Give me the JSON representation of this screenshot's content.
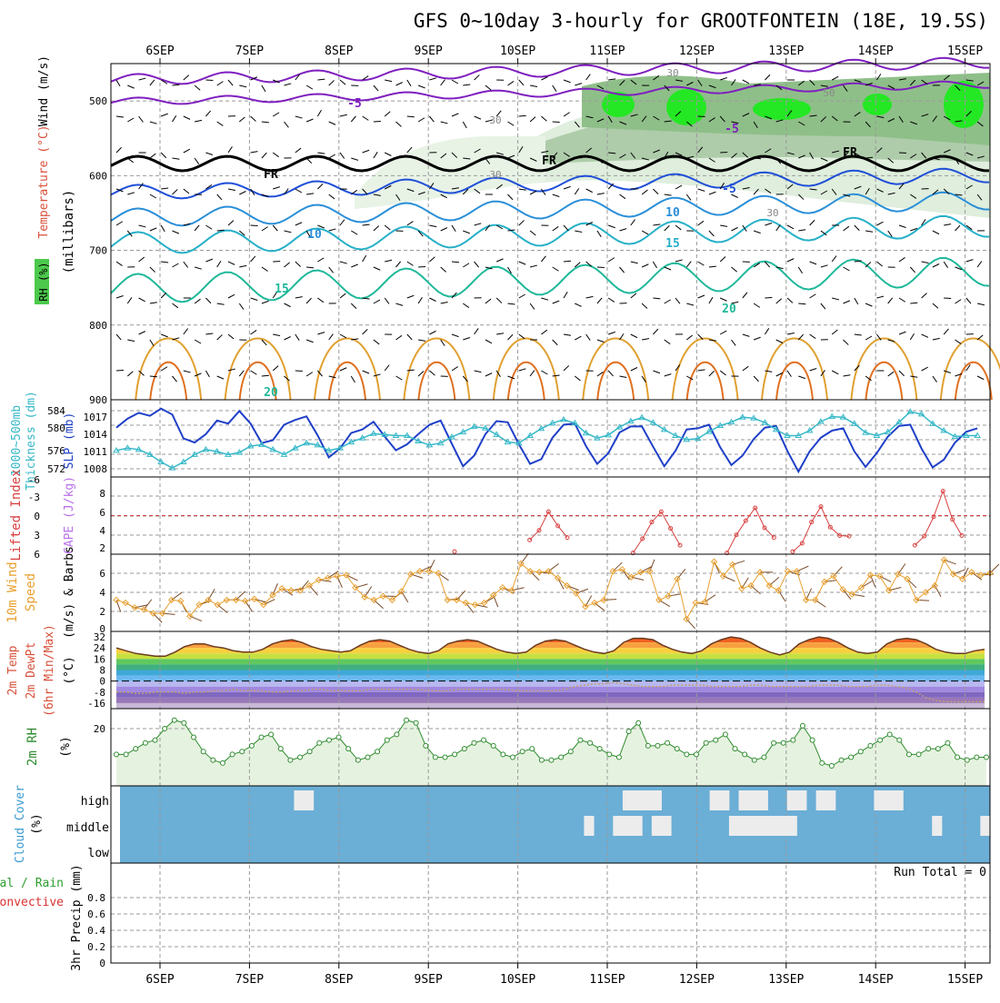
{
  "title": "GFS 0~10day 3-hourly for GROOTFONTEIN (18E, 19.5S)",
  "dates": [
    "6SEP",
    "7SEP",
    "8SEP",
    "9SEP",
    "10SEP",
    "11SEP",
    "12SEP",
    "13SEP",
    "14SEP",
    "15SEP"
  ],
  "colors": {
    "frame": "#000000",
    "grid": "#9a9a9a",
    "slp": "#1f3fc8",
    "thickness": "#36b8c8",
    "cape": "#b870e8",
    "lifted": "#d84040",
    "wind10m": "#e8a030",
    "barb": "#7a4a28",
    "rh2m": "#2e8b2e",
    "rhFill": "#e6f2e0",
    "cloudBg": "#6baed6",
    "cloud": "#ececec",
    "precipTotal": "#2e9e2e",
    "precipConv": "#d83030"
  },
  "panels": {
    "upper": {
      "left_labels": [
        "Wind (m/s)",
        "Temperature (°C)",
        "RH (%)"
      ],
      "ylabel": "(millibars)",
      "ticks": [
        "500",
        "600",
        "700",
        "800",
        "900"
      ],
      "tick_values": [
        500,
        600,
        700,
        800,
        900
      ],
      "ylim": [
        450,
        900
      ],
      "temp_labels": [
        "-5",
        "-5",
        "FR",
        "FR",
        "FR",
        "-5",
        "10",
        "10",
        "15",
        "15",
        "20",
        "20"
      ],
      "rh_labels": [
        "30",
        "30",
        "30",
        "30",
        "50"
      ]
    },
    "slp": {
      "left_labels": [
        "1000~500mb",
        "Thickness (dm)",
        "SLP (mb)"
      ],
      "thickness_ticks": [
        "584",
        "580",
        "576",
        "572"
      ],
      "slp_ticks": [
        "1017",
        "1014",
        "1011",
        "1008"
      ]
    },
    "cape": {
      "left_labels": [
        "Lifted Index",
        "CAPE (J/kg)"
      ],
      "li_ticks": [
        "-6",
        "-3",
        "0",
        "3",
        "6"
      ],
      "cape_ticks": [
        "8",
        "6",
        "4",
        "2"
      ]
    },
    "wind": {
      "left_labels": [
        "10m Wind",
        "Speed",
        "(m/s) & Barbs"
      ],
      "ticks": [
        "6",
        "4",
        "2",
        "0"
      ]
    },
    "temp": {
      "left_labels": [
        "2m Temp",
        "2m DewPt",
        "(6hr Min/Max)",
        "(°C)"
      ],
      "ticks": [
        "32",
        "24",
        "16",
        "8",
        "0",
        "-8",
        "-16"
      ]
    },
    "rh": {
      "left_labels": [
        "2m RH",
        "(%)"
      ],
      "ticks": [
        "20"
      ]
    },
    "cloud": {
      "left_labels": [
        "Cloud Cover",
        "(%)"
      ],
      "ticks": [
        "high",
        "middle",
        "low"
      ]
    },
    "precip": {
      "left_labels": [
        "Total / Rain",
        "Convective",
        "3hr Precip (mm)"
      ],
      "ticks": [
        "0.8",
        "0.6",
        "0.4",
        "0.2",
        "0"
      ],
      "run_total": "Run Total = 0"
    }
  },
  "chart_data": [
    {
      "type": "line",
      "name": "Sea level pressure and 1000-500mb thickness",
      "x_step_hours": 3,
      "series": [
        {
          "name": "SLP (mb)",
          "ylim": [
            1006,
            1019
          ],
          "values": [
            1014.3,
            1015.8,
            1016.8,
            1016.3,
            1017.5,
            1016.5,
            1012.5,
            1011.8,
            1013.2,
            1015.5,
            1015.0,
            1017.1,
            1015.0,
            1011.7,
            1012.2,
            1014.8,
            1015.6,
            1016.2,
            1013.0,
            1009.3,
            1010.8,
            1013.4,
            1014.0,
            1015.3,
            1012.8,
            1010.5,
            1011.5,
            1013.2,
            1014.8,
            1015.5,
            1011.6,
            1007.8,
            1009.6,
            1013.2,
            1015.4,
            1015.2,
            1011.5,
            1008.2,
            1009.0,
            1012.6,
            1014.8,
            1015.0,
            1011.2,
            1008.2,
            1010.0,
            1013.5,
            1014.5,
            1014.5,
            1011.1,
            1007.8,
            1010.4,
            1014.0,
            1014.2,
            1014.8,
            1011.0,
            1008.0,
            1009.6,
            1012.4,
            1014.3,
            1014.6,
            1010.4,
            1006.9,
            1010.3,
            1012.6,
            1013.8,
            1014.2,
            1010.3,
            1007.7,
            1010.0,
            1012.8,
            1014.6,
            1014.8,
            1010.8,
            1007.6,
            1008.9,
            1011.8,
            1013.6,
            1014.2
          ]
        },
        {
          "name": "1000~500mb Thickness (dm)",
          "ylim": [
            570.5,
            586
          ],
          "values": [
            575.8,
            576.3,
            576.0,
            575.0,
            573.5,
            572.3,
            573.5,
            575.0,
            576.0,
            575.6,
            575.0,
            575.4,
            576.7,
            577.0,
            576.0,
            575.0,
            576.3,
            577.3,
            576.9,
            575.8,
            576.3,
            577.5,
            578.3,
            579.2,
            579.0,
            578.8,
            578.8,
            577.7,
            576.9,
            577.3,
            578.5,
            579.5,
            580.6,
            580.3,
            579.0,
            577.5,
            577.3,
            578.8,
            580.2,
            581.3,
            582.0,
            581.3,
            579.3,
            578.3,
            578.9,
            580.5,
            581.7,
            582.4,
            581.4,
            580.0,
            578.8,
            578.0,
            578.2,
            579.6,
            580.8,
            581.5,
            582.5,
            582.3,
            581.4,
            580.0,
            578.8,
            578.8,
            579.8,
            581.6,
            582.6,
            582.5,
            581.2,
            579.4,
            578.8,
            579.5,
            581.5,
            583.6,
            583.1,
            581.2,
            579.8,
            578.6,
            578.8,
            578.8
          ]
        }
      ]
    },
    {
      "type": "line",
      "name": "Lifted Index and CAPE",
      "series": [
        {
          "name": "Lifted Index",
          "ylim": [
            -6,
            6
          ],
          "values": [
            6,
            6,
            6,
            6,
            6,
            6,
            6,
            6,
            6,
            6,
            6,
            6,
            6,
            6,
            6,
            6,
            6,
            6,
            6,
            6,
            6,
            6,
            6,
            6,
            6,
            6,
            6,
            6,
            6,
            6,
            6,
            6,
            6,
            6,
            6,
            6,
            5.6,
            6,
            6,
            6,
            6,
            6,
            6,
            6,
            3.8,
            2.3,
            -0.6,
            1.6,
            3.4,
            6,
            6,
            6,
            6,
            6,
            6,
            5.8,
            3.6,
            1.0,
            -0.6,
            2.0,
            4.6,
            6,
            6,
            6,
            6,
            5.8,
            3.0,
            0.8,
            -1.2,
            1.9,
            3.4,
            6,
            5.6,
            4.3,
            1.0,
            -1.4,
            1.8,
            3.1,
            3.2,
            6,
            6,
            6,
            6,
            6,
            6,
            4.6,
            3.2,
            0.2,
            -3.8,
            0.6,
            3.1,
            6,
            6,
            6
          ]
        },
        {
          "name": "CAPE (J/kg)",
          "ylim": [
            0,
            10
          ],
          "bar_index": 87,
          "bar_value": 9.6
        }
      ]
    },
    {
      "type": "line",
      "name": "10m wind speed",
      "ylim": [
        0,
        7.5
      ],
      "values": [
        3.0,
        2.7,
        2.2,
        2.0,
        1.6,
        1.6,
        3.0,
        2.9,
        1.3,
        2.5,
        3.0,
        2.5,
        3.0,
        3.0,
        2.9,
        3.1,
        2.5,
        3.5,
        4.2,
        4.0,
        4.0,
        4.5,
        5.1,
        5.3,
        5.5,
        5.6,
        4.3,
        3.3,
        3.0,
        3.4,
        3.0,
        3.9,
        5.7,
        6.0,
        6.0,
        5.8,
        3.0,
        3.0,
        2.7,
        2.5,
        2.7,
        3.5,
        4.3,
        4.0,
        6.8,
        6.0,
        5.9,
        6.0,
        5.3,
        4.5,
        3.7,
        2.3,
        2.7,
        3.0,
        6.0,
        6.2,
        5.4,
        5.9,
        6.0,
        3.0,
        3.4,
        5.2,
        1.0,
        2.7,
        2.8,
        7.0,
        5.5,
        6.7,
        4.2,
        4.5,
        5.9,
        4.5,
        4.0,
        6.0,
        6.0,
        3.0,
        3.0,
        4.9,
        5.5,
        4.1,
        3.6,
        4.3,
        5.6,
        5.5,
        4.0,
        5.7,
        5.2,
        3.0,
        3.8,
        4.5,
        7.2,
        5.7,
        5.2,
        5.9,
        5.6,
        5.8
      ]
    },
    {
      "type": "area",
      "name": "2m temperature and dewpoint",
      "ylim": [
        -20,
        36
      ],
      "series": [
        {
          "name": "2m Temp",
          "values": [
            24,
            22,
            20,
            19,
            18,
            18,
            21,
            25,
            27,
            27,
            25,
            24,
            22,
            21,
            21,
            23,
            27,
            29,
            30,
            28,
            25,
            23,
            22,
            21,
            22,
            26,
            29,
            30,
            29,
            26,
            23,
            21,
            20,
            22,
            27,
            29,
            30,
            29,
            26,
            23,
            21,
            20,
            21,
            26,
            29,
            30,
            29,
            26,
            23,
            21,
            20,
            22,
            28,
            31,
            31,
            30,
            26,
            23,
            21,
            20,
            22,
            27,
            30,
            32,
            31,
            28,
            24,
            21,
            19,
            21,
            27,
            30,
            32,
            31,
            28,
            24,
            21,
            20,
            21,
            27,
            30,
            31,
            30,
            27,
            23,
            21,
            20,
            20,
            22,
            23
          ]
        },
        {
          "name": "2m DewPt",
          "values": [
            -8,
            -8,
            -9,
            -9,
            -8,
            -8,
            -8,
            -9,
            -8,
            -8,
            -7,
            -7,
            -6,
            -7,
            -7,
            -7,
            -8,
            -8,
            -7,
            -7,
            -6,
            -6,
            -7,
            -7,
            -7,
            -7,
            -6,
            -6,
            -6,
            -6,
            -6,
            -6,
            -7,
            -7,
            -7,
            -6,
            -6,
            -6,
            -6,
            -6,
            -6,
            -7,
            -7,
            -7,
            -7,
            -7,
            -6,
            -4,
            -3,
            -2,
            -2,
            -1,
            -2,
            -3,
            -4,
            -4,
            -4,
            -3,
            -3,
            -3,
            -3,
            -4,
            -4,
            -4,
            -4,
            -3,
            -3,
            -4,
            -4,
            -4,
            -4,
            -4,
            -3,
            -3,
            -3,
            -4,
            -4,
            -4,
            -3,
            -3,
            -4,
            -5,
            -8,
            -12,
            -14,
            -15,
            -15,
            -15,
            -15,
            -15
          ]
        }
      ]
    },
    {
      "type": "line",
      "name": "2m relative humidity",
      "ylim": [
        0,
        27
      ],
      "values": [
        11,
        11,
        13,
        15,
        16,
        20,
        23,
        22,
        17,
        12,
        9,
        8,
        11,
        12,
        14,
        17,
        18,
        13,
        9,
        10,
        12,
        15,
        16,
        17,
        13,
        9,
        10,
        12,
        16,
        18,
        23,
        22,
        14,
        10,
        10,
        11,
        13,
        15,
        16,
        14,
        11,
        10,
        12,
        13,
        9,
        9,
        10,
        12,
        16,
        15,
        13,
        11,
        10,
        19,
        22,
        14,
        14,
        15,
        13,
        11,
        11,
        15,
        16,
        18,
        13,
        11,
        9,
        10,
        15,
        15,
        16,
        21,
        16,
        8,
        7,
        9,
        10,
        12,
        14,
        16,
        18,
        16,
        11,
        11,
        13,
        13,
        15,
        10,
        9,
        10,
        10
      ]
    },
    {
      "type": "bar",
      "name": "Cloud cover",
      "series": [
        {
          "name": "high",
          "values": [
            0,
            0,
            0,
            0,
            0,
            0,
            0,
            0,
            0,
            0,
            0,
            0,
            0,
            0,
            0,
            0,
            0,
            0,
            1,
            1,
            0,
            0,
            0,
            0,
            0,
            0,
            0,
            0,
            0,
            0,
            0,
            0,
            0,
            0,
            0,
            0,
            0,
            0,
            0,
            0,
            0,
            0,
            0,
            0,
            0,
            0,
            0,
            0,
            0,
            0,
            0,
            0,
            1,
            1,
            1,
            1,
            0,
            0,
            0,
            0,
            0,
            1,
            1,
            0,
            1,
            1,
            1,
            0,
            0,
            1,
            1,
            0,
            1,
            1,
            0,
            0,
            0,
            0,
            1,
            1,
            1,
            0,
            0,
            0,
            0,
            0,
            0,
            0,
            0,
            0
          ]
        },
        {
          "name": "middle",
          "values": [
            0,
            0,
            0,
            0,
            0,
            0,
            0,
            0,
            0,
            0,
            0,
            0,
            0,
            0,
            0,
            0,
            0,
            0,
            0,
            0,
            0,
            0,
            0,
            0,
            0,
            0,
            0,
            0,
            0,
            0,
            0,
            0,
            0,
            0,
            0,
            0,
            0,
            0,
            0,
            0,
            0,
            0,
            0,
            0,
            0,
            0,
            0,
            0,
            1,
            0,
            0,
            1,
            1,
            1,
            0,
            1,
            1,
            0,
            0,
            0,
            0,
            0,
            0,
            1,
            1,
            1,
            1,
            1,
            1,
            1,
            0,
            0,
            0,
            0,
            0,
            0,
            0,
            0,
            0,
            0,
            0,
            0,
            0,
            0,
            1,
            0,
            0,
            0,
            0,
            1
          ]
        }
      ]
    },
    {
      "type": "bar",
      "name": "3hr precipitation",
      "ylim": [
        0,
        1
      ],
      "values": []
    }
  ]
}
